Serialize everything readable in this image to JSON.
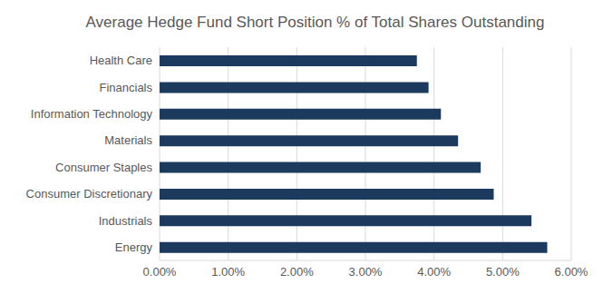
{
  "chart_data": {
    "type": "bar",
    "title": "Average Hedge Fund Short Position % of Total Shares Outstanding",
    "orientation": "horizontal",
    "categories": [
      "Health Care",
      "Financials",
      "Information Technology",
      "Materials",
      "Consumer Staples",
      "Consumer Discretionary",
      "Industrials",
      "Energy"
    ],
    "values": [
      3.75,
      3.92,
      4.1,
      4.35,
      4.68,
      4.87,
      5.42,
      5.65
    ],
    "color": "#1c3a5e",
    "xlim": [
      0,
      6
    ],
    "xticks": [
      {
        "value": 0,
        "label": "0.00%"
      },
      {
        "value": 1,
        "label": "1.00%"
      },
      {
        "value": 2,
        "label": "2.00%"
      },
      {
        "value": 3,
        "label": "3.00%"
      },
      {
        "value": 4,
        "label": "4.00%"
      },
      {
        "value": 5,
        "label": "5.00%"
      },
      {
        "value": 6,
        "label": "6.00%"
      }
    ],
    "grid": true
  }
}
